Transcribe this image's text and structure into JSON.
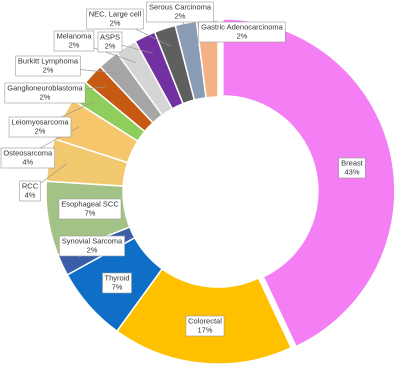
{
  "chart_data": {
    "type": "donut",
    "categories": [
      "Breast",
      "Colorectal",
      "Thyroid",
      "Synovial Sarcoma",
      "Esophageal SCC",
      "RCC",
      "Osteosarcoma",
      "Leiomyosarcoma",
      "Ganglioneuroblastoma",
      "Burkitt Lymphoma",
      "Melanoma",
      "ASPS",
      "NEC, Large cell",
      "Serous Carcinoma",
      "Gastric Adenocarcinoma"
    ],
    "values": [
      43,
      17,
      7,
      2,
      7,
      4,
      4,
      2,
      2,
      2,
      2,
      2,
      2,
      2,
      2
    ],
    "value_labels": [
      "43%",
      "17%",
      "7%",
      "2%",
      "7%",
      "4%",
      "4%",
      "2%",
      "2%",
      "2%",
      "2%",
      "2%",
      "2%",
      "2%",
      "2%"
    ],
    "colors": [
      "#f47ef4",
      "#ffc000",
      "#0f6fc6",
      "#3a5fa8",
      "#a3c285",
      "#f3c96f",
      "#f5c66b",
      "#8fce5c",
      "#c65a12",
      "#a6a6a6",
      "#d5d5d5",
      "#7230a0",
      "#5f5f5f",
      "#8a9bb5",
      "#f4b183"
    ]
  }
}
